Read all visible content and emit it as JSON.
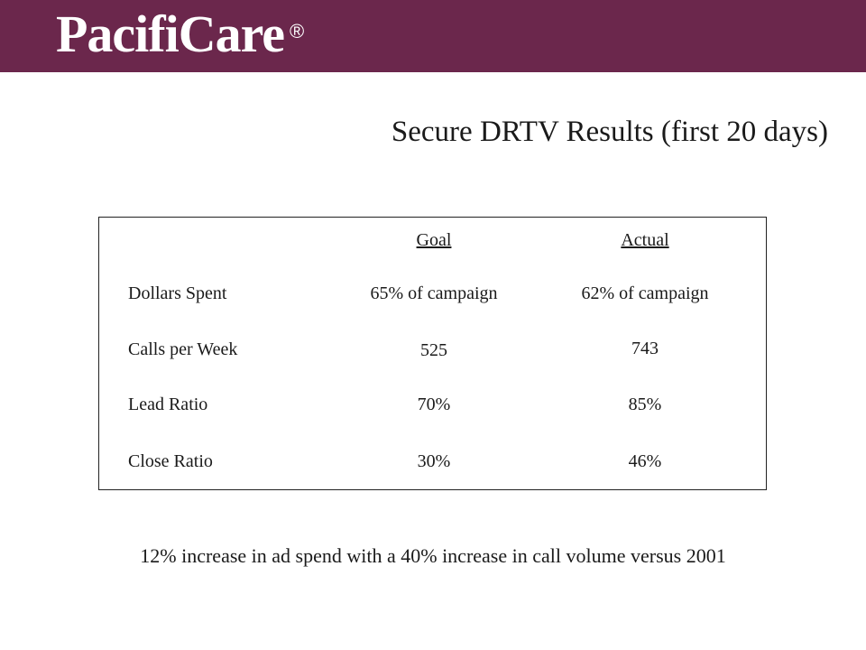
{
  "brand": {
    "logo_text": "PacifiCare",
    "registered_mark": "®",
    "banner_color": "#6b274c"
  },
  "slide_title": "Secure DRTV Results (first 20 days)",
  "table": {
    "headers": [
      "Goal",
      "Actual"
    ],
    "rows": [
      {
        "metric": "Dollars Spent",
        "goal": "65% of campaign",
        "actual": "62% of campaign"
      },
      {
        "metric": "Calls per Week",
        "goal": "525",
        "actual": "743"
      },
      {
        "metric": "Lead Ratio",
        "goal": "70%",
        "actual": "85%"
      },
      {
        "metric": "Close Ratio",
        "goal": "30%",
        "actual": "46%"
      }
    ]
  },
  "footer_note": "12% increase in ad spend with a 40% increase in call volume versus 2001"
}
